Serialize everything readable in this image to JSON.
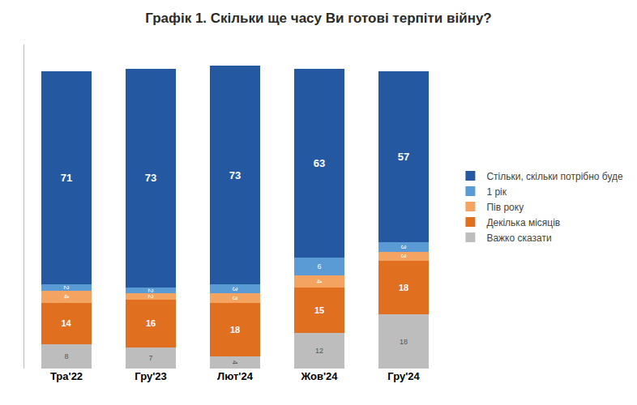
{
  "chart_data": {
    "type": "bar",
    "title": "Графік 1. Скільки ще часу Ви готові терпіти війну?",
    "categories": [
      "Тра'22",
      "Гру'23",
      "Лют'24",
      "Жов'24",
      "Гру'24"
    ],
    "series": [
      {
        "name": "Важко сказати",
        "color": "#BDBDBD",
        "values": [
          8,
          7,
          4,
          12,
          18
        ]
      },
      {
        "name": "Декілька місяців",
        "color": "#E07020",
        "values": [
          14,
          16,
          18,
          15,
          18
        ]
      },
      {
        "name": "Пів року",
        "color": "#F4A460",
        "values": [
          4,
          2,
          3,
          4,
          3
        ]
      },
      {
        "name": "1 рік",
        "color": "#5B9BD5",
        "values": [
          2,
          2,
          3,
          6,
          3
        ]
      },
      {
        "name": "Стільки, скільки потрібно буде",
        "color": "#2458A0",
        "values": [
          71,
          73,
          73,
          63,
          57
        ]
      }
    ],
    "stacked": true,
    "data_labels": true,
    "ylim": [
      0,
      108
    ],
    "tick_labels": "x",
    "grid": false,
    "legend": "right"
  }
}
